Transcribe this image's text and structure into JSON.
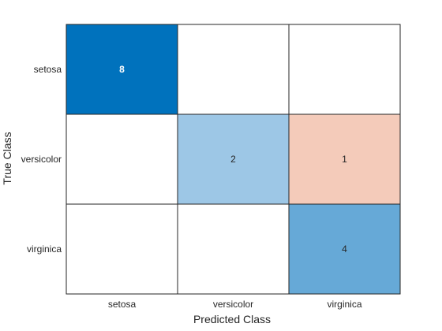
{
  "chart_data": {
    "type": "heatmap",
    "title": "",
    "xlabel": "Predicted Class",
    "ylabel": "True Class",
    "x_categories": [
      "setosa",
      "versicolor",
      "virginica"
    ],
    "y_categories": [
      "setosa",
      "versicolor",
      "virginica"
    ],
    "values": [
      [
        8,
        0,
        0
      ],
      [
        0,
        2,
        1
      ],
      [
        0,
        0,
        4
      ]
    ],
    "colors": {
      "diagonal_max": "#0072bd",
      "diagonal_low": "#9dc7e6",
      "diagonal_mid": "#66a9d7",
      "off_diagonal": "#f4cbba",
      "empty": "#ffffff",
      "grid": "#262626",
      "text_dark": "#262626",
      "text_light": "#ffffff"
    }
  }
}
